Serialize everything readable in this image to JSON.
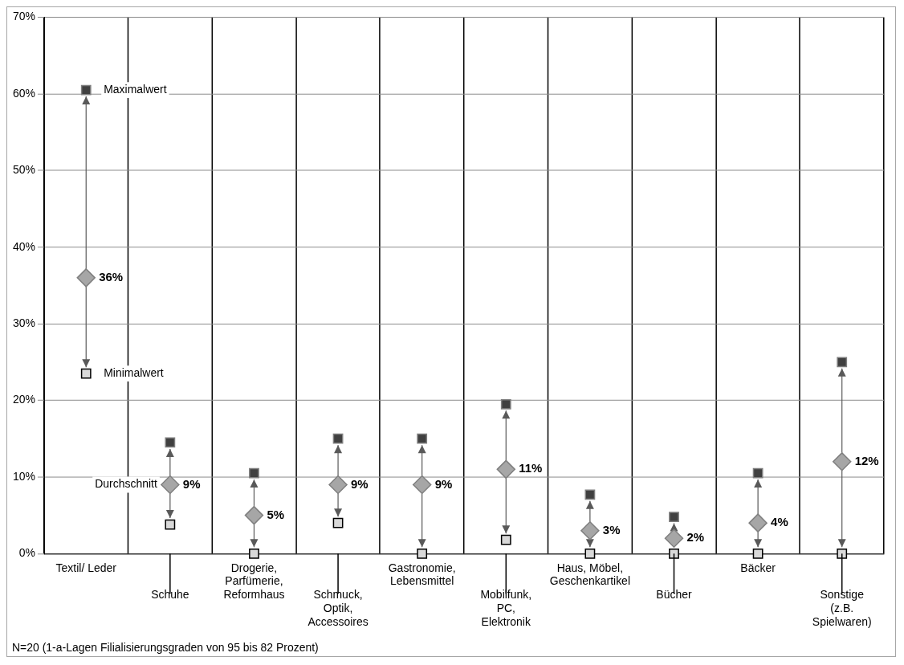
{
  "chart_data": {
    "type": "scatter",
    "categories": [
      "Textil/ Leder",
      "Schuhe",
      "Drogerie,\nParfümerie,\nReformhaus",
      "Schmuck,\nOptik,\nAccessoires",
      "Gastronomie,\nLebensmittel",
      "Mobilfunk,\nPC,\nElektronik",
      "Haus, Möbel,\nGeschenkartikel",
      "Bücher",
      "Bäcker",
      "Sonstige\n(z.B.\nSpielwaren)"
    ],
    "series": [
      {
        "name": "Maximalwert",
        "color": "#404040",
        "marker": "square",
        "values": [
          60.5,
          14.5,
          10.5,
          15,
          15,
          19.5,
          7.7,
          4.8,
          10.5,
          25
        ]
      },
      {
        "name": "Minimalwert",
        "color": "#d9d9d9",
        "marker": "square",
        "values": [
          23.5,
          3.8,
          0,
          4,
          0,
          1.8,
          0,
          0,
          0,
          0
        ]
      },
      {
        "name": "Durchschnitt",
        "color": "#a6a6a6",
        "marker": "diamond",
        "values": [
          36,
          9,
          5,
          9,
          9,
          11,
          3,
          2,
          4,
          12
        ],
        "value_labels": [
          "36%",
          "9%",
          "5%",
          "9%",
          "9%",
          "11%",
          "3%",
          "2%",
          "4%",
          "12%"
        ]
      }
    ],
    "ylim": [
      0,
      70
    ],
    "yticks": [
      {
        "value": 0,
        "label": "0%"
      },
      {
        "value": 10,
        "label": "10%"
      },
      {
        "value": 20,
        "label": "20%"
      },
      {
        "value": 30,
        "label": "30%"
      },
      {
        "value": 40,
        "label": "40%"
      },
      {
        "value": 50,
        "label": "50%"
      },
      {
        "value": 60,
        "label": "60%"
      },
      {
        "value": 70,
        "label": "70%"
      }
    ],
    "grid": true,
    "legend": false,
    "annotations": [
      "N=20 (1-a-Lagen Filialisierungsgraden von 95 bis 82 Prozent)"
    ]
  }
}
